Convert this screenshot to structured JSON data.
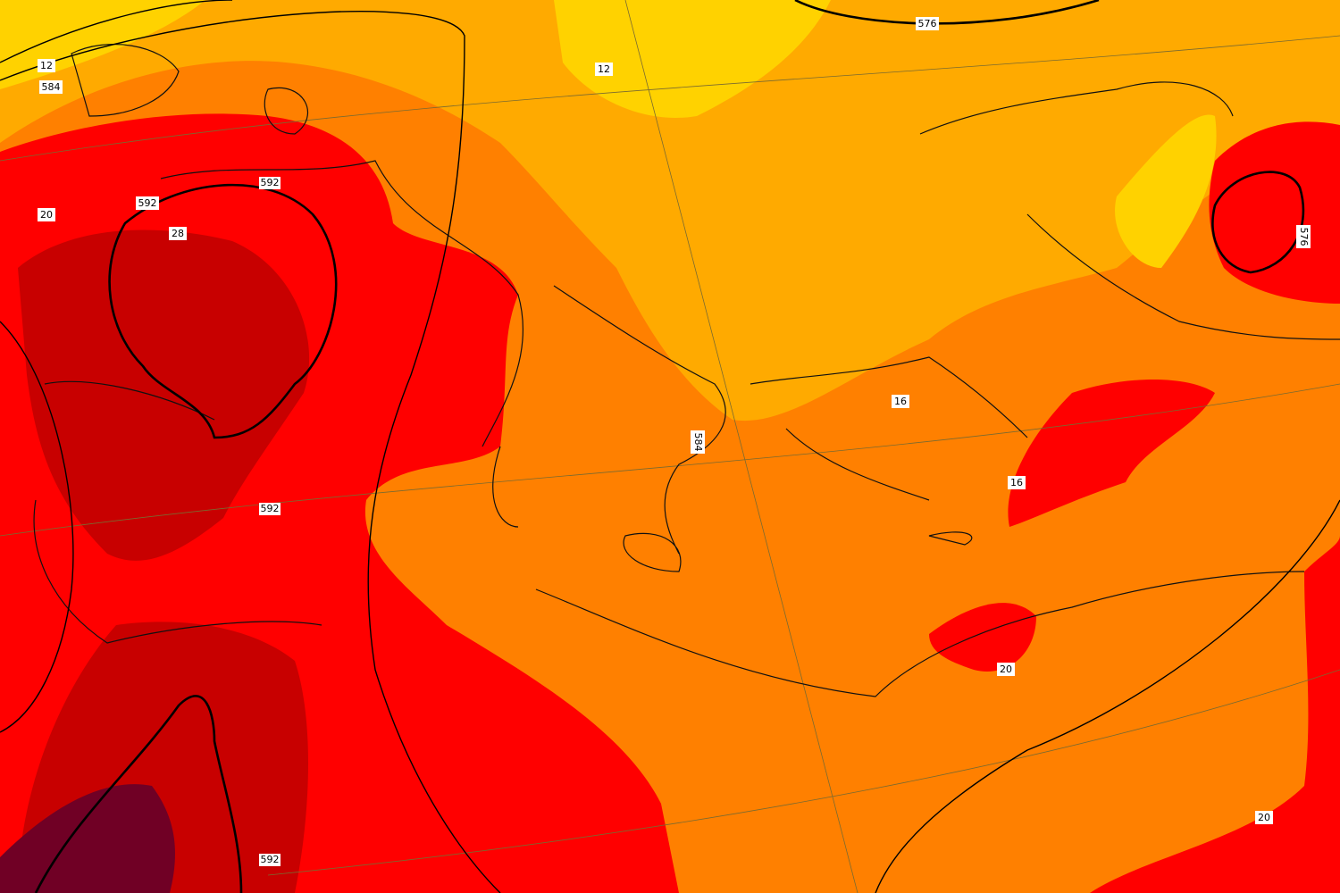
{
  "labels": [
    {
      "text": "12"
    },
    {
      "text": "584"
    },
    {
      "text": "576"
    },
    {
      "text": "12"
    },
    {
      "text": "592"
    },
    {
      "text": "592"
    },
    {
      "text": "20"
    },
    {
      "text": "28"
    },
    {
      "text": "576"
    },
    {
      "text": "16"
    },
    {
      "text": "584"
    },
    {
      "text": "592"
    },
    {
      "text": "16"
    },
    {
      "text": "20"
    },
    {
      "text": "592"
    },
    {
      "text": "20"
    }
  ]
}
